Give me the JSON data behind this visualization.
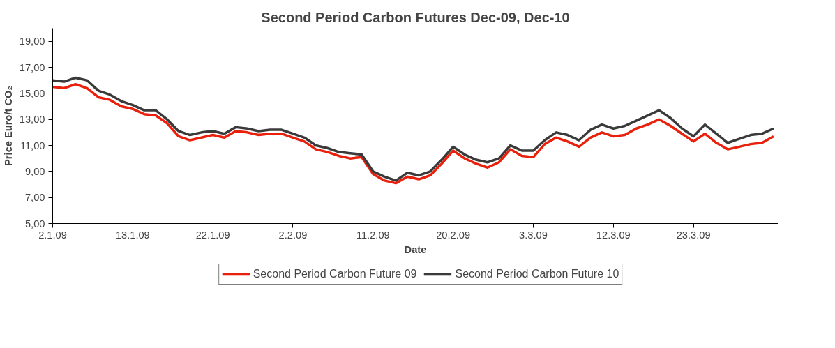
{
  "chart_data": {
    "type": "line",
    "title": "Second Period Carbon Futures Dec-09, Dec-10",
    "xlabel": "Date",
    "ylabel": "Price Euro/t CO₂",
    "categories": [
      "2.1.09",
      null,
      null,
      null,
      null,
      null,
      null,
      "13.1.09",
      null,
      null,
      null,
      null,
      null,
      null,
      "22.1.09",
      null,
      null,
      null,
      null,
      null,
      null,
      "2.2.09",
      null,
      null,
      null,
      null,
      null,
      null,
      "11.2.09",
      null,
      null,
      null,
      null,
      null,
      null,
      "20.2.09",
      null,
      null,
      null,
      null,
      null,
      null,
      "3.3.09",
      null,
      null,
      null,
      null,
      null,
      null,
      "12.3.09",
      null,
      null,
      null,
      null,
      null,
      null,
      "23.3.09",
      null,
      null,
      null,
      null,
      null,
      null,
      null
    ],
    "series": [
      {
        "name": "Second Period Carbon Future 09",
        "color": "#e8200c",
        "values": [
          15.5,
          15.4,
          15.7,
          15.4,
          14.7,
          14.5,
          14.0,
          13.8,
          13.4,
          13.3,
          12.7,
          11.7,
          11.4,
          11.6,
          11.8,
          11.6,
          12.1,
          12.0,
          11.8,
          11.9,
          11.9,
          11.6,
          11.3,
          10.7,
          10.5,
          10.2,
          10.0,
          10.1,
          8.8,
          8.3,
          8.1,
          8.6,
          8.4,
          8.7,
          9.6,
          10.6,
          10.0,
          9.6,
          9.3,
          9.7,
          10.7,
          10.2,
          10.1,
          11.1,
          11.6,
          11.3,
          10.9,
          11.6,
          12.0,
          11.7,
          11.8,
          12.3,
          12.6,
          13.0,
          12.5,
          11.9,
          11.3,
          11.9,
          11.2,
          10.7,
          10.9,
          11.1,
          11.2,
          11.7
        ]
      },
      {
        "name": "Second Period Carbon Future 10",
        "color": "#3a3a3a",
        "values": [
          16.0,
          15.9,
          16.2,
          16.0,
          15.2,
          14.9,
          14.4,
          14.1,
          13.7,
          13.7,
          13.0,
          12.1,
          11.8,
          12.0,
          12.1,
          11.9,
          12.4,
          12.3,
          12.1,
          12.2,
          12.2,
          11.9,
          11.6,
          11.0,
          10.8,
          10.5,
          10.4,
          10.3,
          9.0,
          8.6,
          8.3,
          8.9,
          8.7,
          9.0,
          9.9,
          10.9,
          10.3,
          9.9,
          9.7,
          10.0,
          11.0,
          10.6,
          10.6,
          11.4,
          12.0,
          11.8,
          11.4,
          12.2,
          12.6,
          12.3,
          12.5,
          12.9,
          13.3,
          13.7,
          13.1,
          12.3,
          11.7,
          12.6,
          11.9,
          11.2,
          11.5,
          11.8,
          11.9,
          12.3
        ]
      }
    ],
    "ylim": [
      5,
      20
    ],
    "yticks": [
      {
        "value": 5,
        "label": "5,00"
      },
      {
        "value": 7,
        "label": "7,00"
      },
      {
        "value": 9,
        "label": "9,00"
      },
      {
        "value": 11,
        "label": "11,00"
      },
      {
        "value": 13,
        "label": "13,00"
      },
      {
        "value": 15,
        "label": "15,00"
      },
      {
        "value": 17,
        "label": "17,00"
      },
      {
        "value": 19,
        "label": "19,00"
      }
    ],
    "grid": false,
    "legend": "bottom",
    "marker": "none",
    "line_style": "solid"
  }
}
